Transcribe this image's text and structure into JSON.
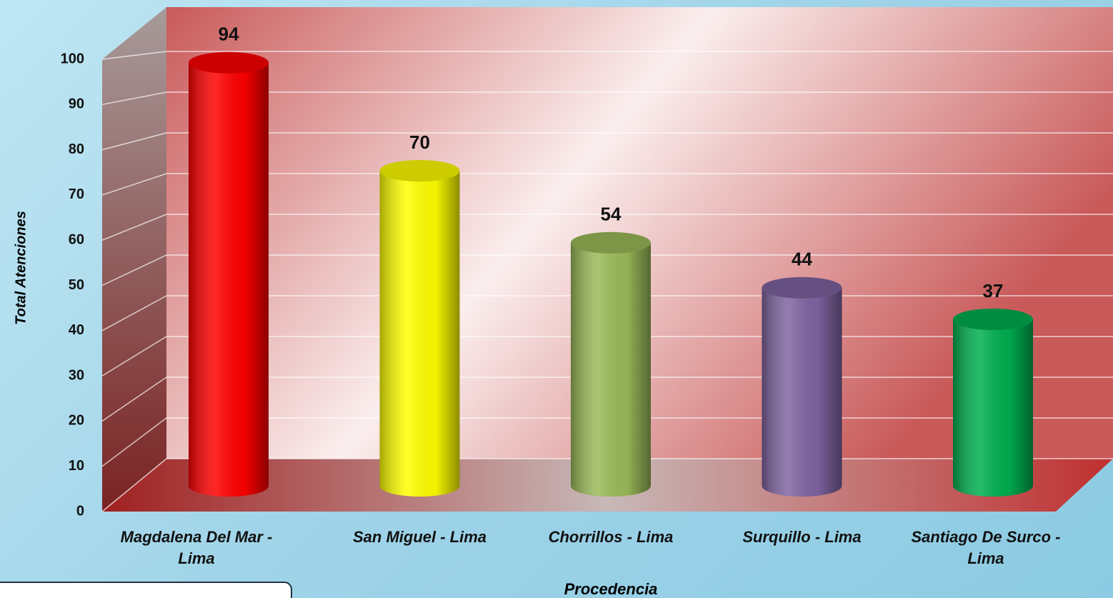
{
  "chart_data": {
    "type": "bar",
    "y_axis_label": "Total Atenciones",
    "x_axis_label": "Procedencia",
    "categories": [
      "Magdalena Del Mar - Lima",
      "San Miguel - Lima",
      "Chorrillos - Lima",
      "Surquillo - Lima",
      "Santiago De Surco - Lima"
    ],
    "values": [
      94,
      70,
      54,
      44,
      37
    ],
    "colors": [
      "#ff0000",
      "#ffff00",
      "#9bbb59",
      "#8064a2",
      "#00b050"
    ],
    "ylim": [
      0,
      100
    ],
    "yticks": [
      0,
      10,
      20,
      30,
      40,
      50,
      60,
      70,
      80,
      90,
      100
    ],
    "grid": true
  }
}
